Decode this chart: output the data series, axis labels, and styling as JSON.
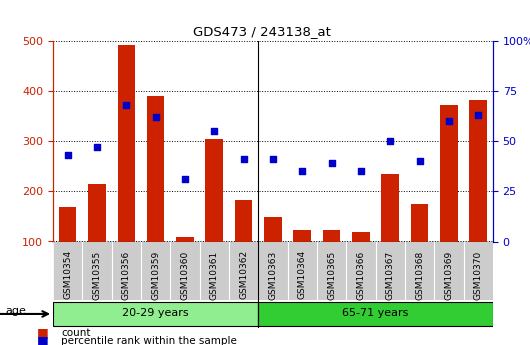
{
  "title": "GDS473 / 243138_at",
  "categories": [
    "GSM10354",
    "GSM10355",
    "GSM10356",
    "GSM10359",
    "GSM10360",
    "GSM10361",
    "GSM10362",
    "GSM10363",
    "GSM10364",
    "GSM10365",
    "GSM10366",
    "GSM10367",
    "GSM10368",
    "GSM10369",
    "GSM10370"
  ],
  "counts": [
    168,
    215,
    492,
    390,
    108,
    305,
    182,
    148,
    123,
    123,
    118,
    235,
    175,
    372,
    383
  ],
  "percentile_pct": [
    43,
    47,
    68,
    62,
    31,
    55,
    41,
    41,
    35,
    39,
    35,
    50,
    40,
    60,
    63
  ],
  "groups": [
    {
      "label": "20-29 years",
      "start": 0,
      "end": 6,
      "color": "#90EE90"
    },
    {
      "label": "65-71 years",
      "start": 7,
      "end": 14,
      "color": "#32CD32"
    }
  ],
  "ylim_left": [
    100,
    500
  ],
  "ylim_right": [
    0,
    100
  ],
  "yticks_left": [
    100,
    200,
    300,
    400,
    500
  ],
  "yticks_right": [
    0,
    25,
    50,
    75,
    100
  ],
  "bar_color": "#CC2200",
  "scatter_color": "#0000CC",
  "age_label": "age",
  "legend_count": "count",
  "legend_percentile": "percentile rank within the sample",
  "ticklabel_bg": "#CCCCCC",
  "group_border_color": "#000000",
  "plot_bg_color": "#FFFFFF"
}
